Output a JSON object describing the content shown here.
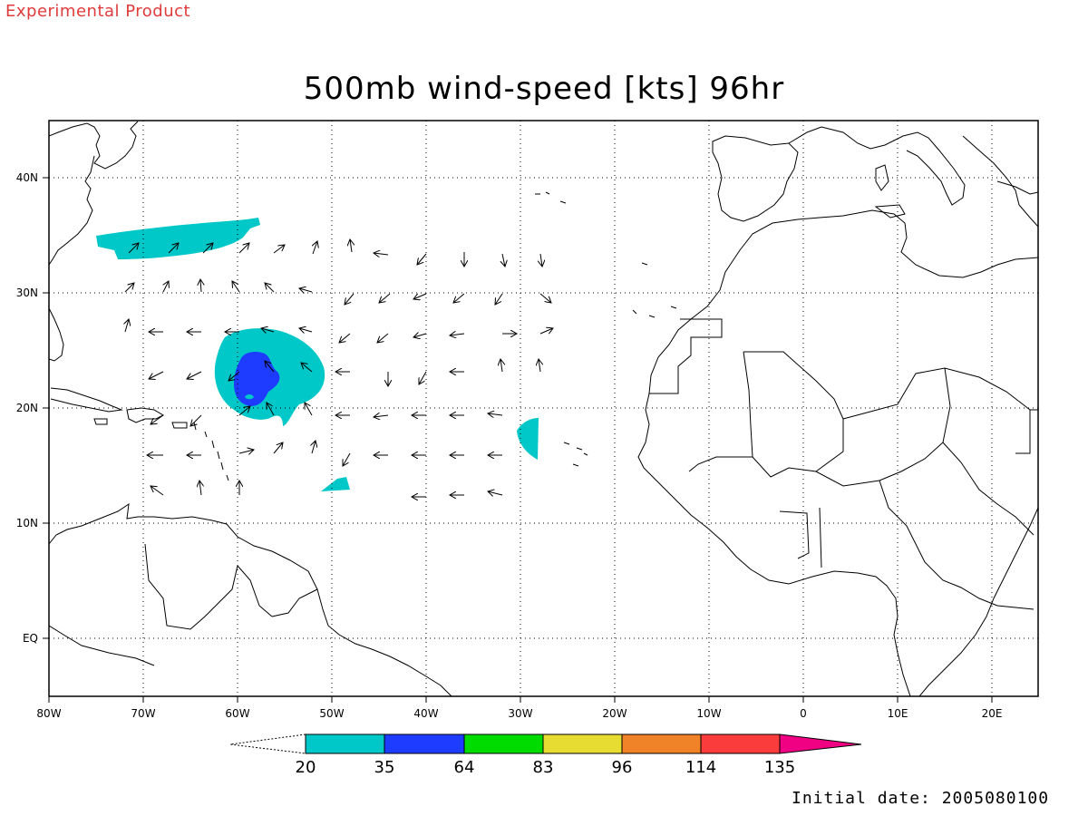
{
  "header": {
    "experimental_label": "Experimental Product",
    "title": "500mb wind-speed [kts] 96hr"
  },
  "footer": {
    "initial_date": "Initial date: 2005080100"
  },
  "map": {
    "lon_range": [
      -80,
      25
    ],
    "lat_range": [
      -5,
      45
    ],
    "gridlines": true,
    "lon_ticks": [
      {
        "value": -80,
        "label": "80W"
      },
      {
        "value": -70,
        "label": "70W"
      },
      {
        "value": -60,
        "label": "60W"
      },
      {
        "value": -50,
        "label": "50W"
      },
      {
        "value": -40,
        "label": "40W"
      },
      {
        "value": -30,
        "label": "30W"
      },
      {
        "value": -20,
        "label": "20W"
      },
      {
        "value": -10,
        "label": "10W"
      },
      {
        "value": 0,
        "label": "0"
      },
      {
        "value": 10,
        "label": "10E"
      },
      {
        "value": 20,
        "label": "20E"
      }
    ],
    "lat_ticks": [
      {
        "value": 40,
        "label": "40N"
      },
      {
        "value": 30,
        "label": "30N"
      },
      {
        "value": 20,
        "label": "20N"
      },
      {
        "value": 10,
        "label": "10N"
      },
      {
        "value": 0,
        "label": "EQ"
      }
    ],
    "colors": {
      "coast": "#000000",
      "shade_20": "#00c8c8",
      "shade_35": "#1e3cff"
    }
  },
  "colorbar": {
    "levels": [
      "20",
      "35",
      "64",
      "83",
      "96",
      "114",
      "135"
    ],
    "colors": [
      "#00c8c8",
      "#1e3cff",
      "#00dc00",
      "#e6dc32",
      "#f08228",
      "#fa3c3c",
      "#f00082"
    ]
  }
}
